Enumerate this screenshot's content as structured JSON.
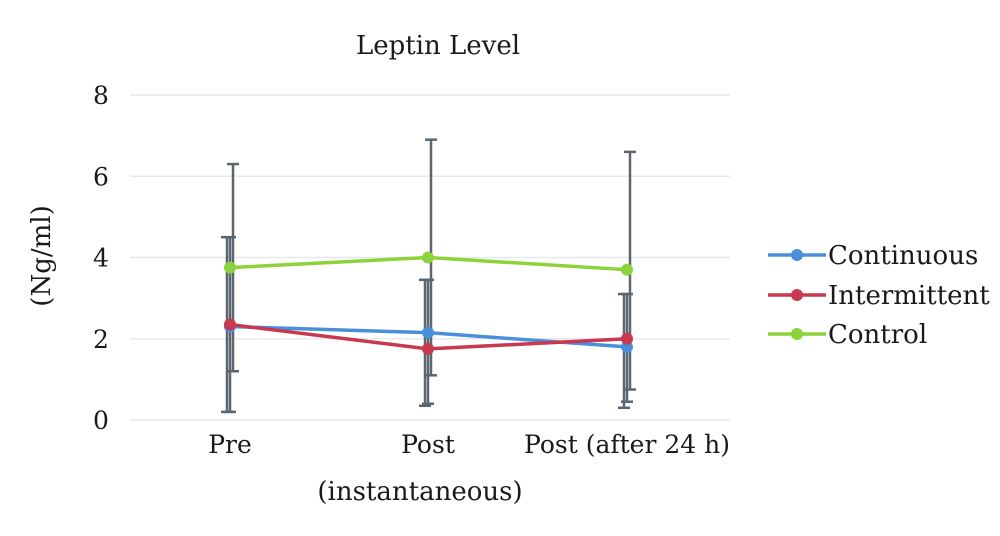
{
  "chart_data": {
    "type": "line",
    "title": "Leptin Level",
    "ylabel": "(Ng/ml)",
    "xlabel": "(instantaneous)",
    "categories": [
      "Pre",
      "Post",
      "Post (after 24 h)"
    ],
    "ylim": [
      0,
      8
    ],
    "yticks": [
      0,
      2,
      4,
      6,
      8
    ],
    "grid": true,
    "legend_position": "right",
    "series": [
      {
        "name": "Continuous",
        "color": "#4a8fdb",
        "values": [
          2.3,
          2.15,
          1.8
        ],
        "err_low": [
          0.2,
          0.35,
          0.3
        ],
        "err_high": [
          4.5,
          3.45,
          3.1
        ]
      },
      {
        "name": "Intermittent",
        "color": "#c8384e",
        "values": [
          2.35,
          1.75,
          2.0
        ],
        "err_low": [
          0.2,
          0.4,
          0.45
        ],
        "err_high": [
          4.5,
          3.45,
          3.1
        ]
      },
      {
        "name": "Control",
        "color": "#8cd23a",
        "values": [
          3.75,
          4.0,
          3.7
        ],
        "err_low": [
          1.2,
          1.1,
          0.75
        ],
        "err_high": [
          6.3,
          6.9,
          6.6
        ]
      }
    ]
  }
}
